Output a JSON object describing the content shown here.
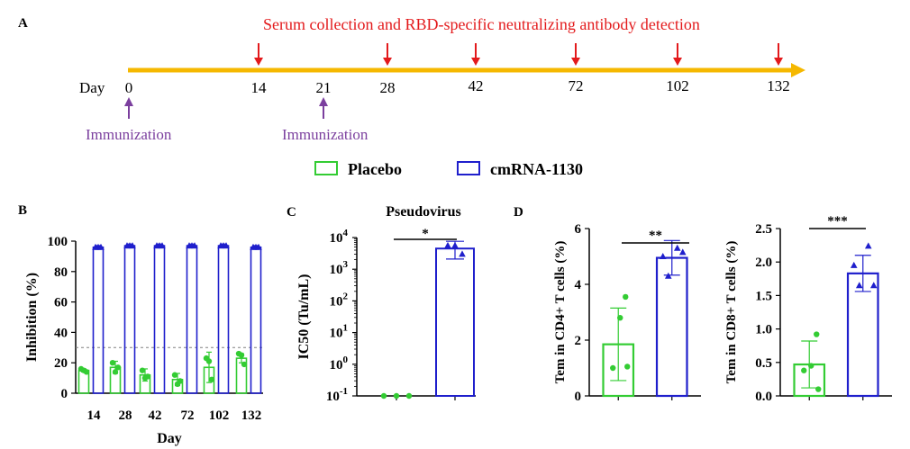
{
  "colors": {
    "placebo": "#33cc33",
    "mrna": "#1f1fcc",
    "timeline": "#f5b800",
    "sample_arrow": "#e31a1c",
    "immunization": "#7b3f9e",
    "threshold_line": "#808080"
  },
  "panel_a": {
    "label": "A",
    "day_label": "Day",
    "serum_text": "Serum collection and RBD-specific neutralizing antibody detection",
    "days": [
      "0",
      "14",
      "21",
      "28",
      "42",
      "72",
      "102",
      "132"
    ],
    "sample_days": [
      14,
      28,
      42,
      72,
      102,
      132
    ],
    "immunization_days": [
      0,
      21
    ],
    "immunization_label": "Immunization"
  },
  "legend": {
    "placebo": "Placebo",
    "mrna": "cmRNA-1130"
  },
  "panel_labels": {
    "b": "B",
    "c": "C",
    "d": "D"
  },
  "chart_data": [
    {
      "panel": "B",
      "type": "bar",
      "categories": [
        "14",
        "28",
        "42",
        "72",
        "102",
        "132"
      ],
      "xlabel": "Day",
      "ylabel": "Inhibition (%)",
      "ylim": [
        0,
        100
      ],
      "yticks": [
        "0",
        "20",
        "40",
        "60",
        "80",
        "100"
      ],
      "threshold": 30,
      "series": [
        {
          "name": "Placebo",
          "values": [
            15,
            17,
            12,
            9,
            17,
            23
          ],
          "err": [
            1,
            4,
            4,
            4,
            10,
            3
          ],
          "points": [
            [
              16,
              15,
              14
            ],
            [
              20,
              14,
              17
            ],
            [
              15,
              10,
              11
            ],
            [
              12,
              6,
              8
            ],
            [
              23,
              21,
              9
            ],
            [
              26,
              25,
              19
            ]
          ]
        },
        {
          "name": "cmRNA-1130",
          "values": [
            96,
            97,
            97,
            97,
            97,
            96
          ],
          "err": [
            0.5,
            0.5,
            0.5,
            0.5,
            0.5,
            0.5
          ],
          "points": [
            [
              96,
              96,
              96
            ],
            [
              97,
              97,
              97
            ],
            [
              97,
              97,
              97
            ],
            [
              97,
              97,
              97
            ],
            [
              97,
              97,
              97
            ],
            [
              96,
              96,
              96
            ]
          ]
        }
      ]
    },
    {
      "panel": "C",
      "type": "bar",
      "title": "Pseudovirus",
      "ylabel": "IC50 (Tu/mL)",
      "yscale": "log",
      "ylim": [
        0.1,
        10000
      ],
      "yticks": [
        0.1,
        1,
        10,
        100,
        1000,
        10000
      ],
      "ytick_base": "10",
      "ytick_exps": [
        "-1",
        "0",
        "1",
        "2",
        "3",
        "4"
      ],
      "significance": "*",
      "series": [
        {
          "name": "Placebo",
          "value": 0.1,
          "points": [
            0.1,
            0.1,
            0.1
          ]
        },
        {
          "name": "cmRNA-1130",
          "value": 4500,
          "err_low": 2100,
          "err_high": 7600,
          "points": [
            5600,
            5600,
            3000
          ]
        }
      ]
    },
    {
      "panel": "D1",
      "type": "bar",
      "ylabel": "Tem in CD4+ T cells (%)",
      "ylim": [
        0,
        6
      ],
      "yticks": [
        "0",
        "2",
        "4",
        "6"
      ],
      "significance": "**",
      "series": [
        {
          "name": "Placebo",
          "value": 1.85,
          "err": 1.3,
          "points": [
            3.55,
            2.8,
            1.0,
            1.05
          ]
        },
        {
          "name": "cmRNA-1130",
          "value": 4.95,
          "err": 0.62,
          "points": [
            5.3,
            5.0,
            5.15,
            4.3
          ]
        }
      ]
    },
    {
      "panel": "D2",
      "type": "bar",
      "ylabel": "Tem in CD8+ T cells (%)",
      "ylim": [
        0,
        2.5
      ],
      "yticks": [
        "0.0",
        "0.5",
        "1.0",
        "1.5",
        "2.0",
        "2.5"
      ],
      "significance": "***",
      "series": [
        {
          "name": "Placebo",
          "value": 0.47,
          "err": 0.35,
          "points": [
            0.92,
            0.45,
            0.38,
            0.1
          ]
        },
        {
          "name": "cmRNA-1130",
          "value": 1.83,
          "err": 0.27,
          "points": [
            2.24,
            1.95,
            1.65,
            1.65
          ]
        }
      ]
    }
  ]
}
